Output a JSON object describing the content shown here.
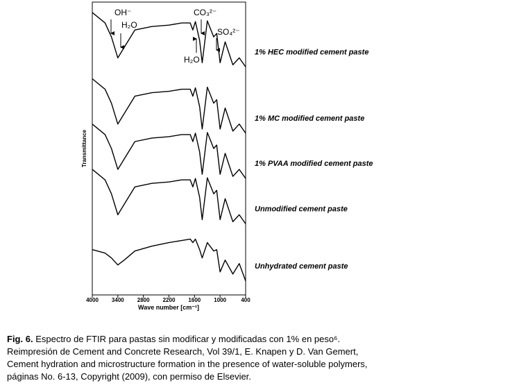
{
  "chart_data": {
    "type": "line",
    "y_label": "Transmittance",
    "x_label": "Wave number [cm⁻¹]",
    "x": [
      4000,
      3700,
      3550,
      3400,
      3250,
      3000,
      2600,
      2200,
      1900,
      1700,
      1640,
      1580,
      1480,
      1420,
      1300,
      1150,
      1080,
      1000,
      880,
      700,
      550,
      400
    ],
    "xlim": [
      4000,
      400
    ],
    "xticks": [
      4000,
      3400,
      2800,
      2200,
      1600,
      1000,
      400
    ],
    "ylim": [
      0,
      420
    ],
    "series": [
      {
        "name": "1% HEC modified cement paste",
        "color": "#000000",
        "values": [
          405,
          390,
          370,
          340,
          355,
          380,
          385,
          387,
          390,
          390,
          380,
          392,
          365,
          333,
          393,
          370,
          375,
          333,
          363,
          330,
          340,
          327
        ]
      },
      {
        "name": "1% MC modified cement paste",
        "color": "#000000",
        "values": [
          310,
          295,
          275,
          245,
          260,
          285,
          290,
          292,
          295,
          295,
          285,
          297,
          270,
          238,
          298,
          275,
          280,
          238,
          268,
          235,
          245,
          232
        ]
      },
      {
        "name": "1% PVAA modified cement paste",
        "color": "#000000",
        "values": [
          245,
          230,
          210,
          180,
          195,
          220,
          225,
          227,
          230,
          230,
          220,
          232,
          205,
          173,
          233,
          210,
          215,
          173,
          203,
          170,
          180,
          167
        ]
      },
      {
        "name": "Unmodified cement paste",
        "color": "#000000",
        "values": [
          180,
          165,
          145,
          115,
          130,
          155,
          160,
          162,
          165,
          165,
          155,
          167,
          140,
          108,
          168,
          145,
          150,
          108,
          138,
          105,
          115,
          102
        ]
      },
      {
        "name": "Unhydrated cement paste",
        "color": "#000000",
        "values": [
          65,
          60,
          53,
          43,
          50,
          63,
          70,
          75,
          78,
          80,
          75,
          80,
          65,
          53,
          75,
          63,
          65,
          33,
          50,
          30,
          45,
          20
        ]
      }
    ],
    "annotations": [
      "OH⁻",
      "H₂O",
      "CO₃²⁻",
      "H₂O",
      "SO₄²⁻"
    ]
  },
  "caption": {
    "label": "Fig. 6.",
    "lines": [
      "Espectro de FTIR para pastas sin modificar y modificadas con 1% en peso⁶.",
      "Reimpresión  de Cement and Concrete Research, Vol 39/1, E. Knapen y D. Van Gemert,",
      "Cement hydration and microstructure formation in the presence of water-soluble polymers,",
      "páginas No. 6-13, Copyright (2009), con permiso de Elsevier."
    ]
  }
}
